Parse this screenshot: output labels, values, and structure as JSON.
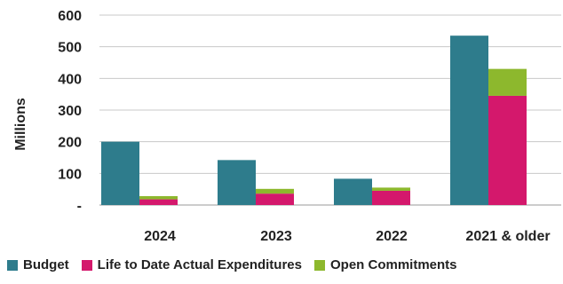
{
  "chart_data": {
    "type": "bar",
    "stacked_groups": true,
    "categories": [
      "2024",
      "2023",
      "2022",
      "2021 & older"
    ],
    "series": [
      {
        "name": "Budget",
        "values": [
          200,
          142,
          83,
          535
        ],
        "color": "#2E7C8C",
        "stack": "budget"
      },
      {
        "name": "Life to Date Actual Expenditures",
        "values": [
          18,
          36,
          45,
          345
        ],
        "color": "#D4186C",
        "stack": "actuals"
      },
      {
        "name": "Open Commitments",
        "values": [
          10,
          15,
          10,
          85
        ],
        "color": "#8DB82D",
        "stack": "actuals"
      }
    ],
    "ylabel": "Millions",
    "yticks": [
      "-",
      "100",
      "200",
      "300",
      "400",
      "500",
      "600"
    ],
    "ylim": [
      0,
      600
    ],
    "grid": true,
    "legend_position": "bottom"
  }
}
